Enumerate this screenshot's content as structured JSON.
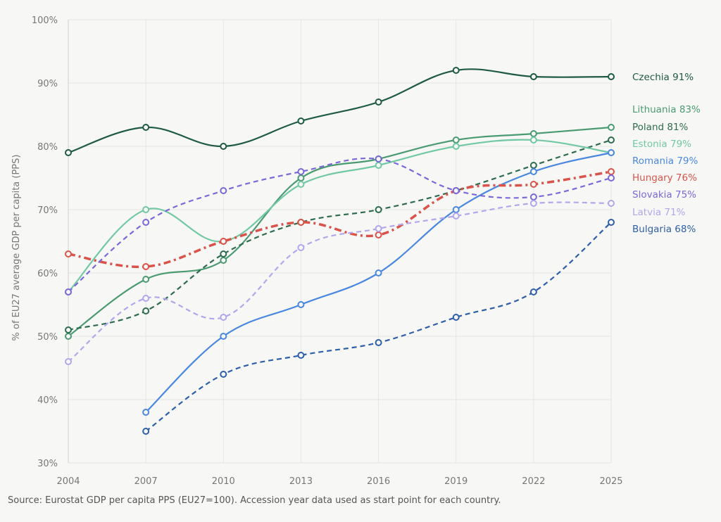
{
  "chart_data": {
    "type": "line",
    "title": "",
    "xlabel": "",
    "ylabel": "% of EU27 average GDP per capita (PPS)",
    "categories": [
      "2004",
      "2007",
      "2010",
      "2013",
      "2016",
      "2019",
      "2022",
      "2025"
    ],
    "ylim": [
      30,
      100
    ],
    "yticks": [
      "30%",
      "40%",
      "50%",
      "60%",
      "70%",
      "80%",
      "90%",
      "100%"
    ],
    "grid": true,
    "legend": "direct labels at right end",
    "series": [
      {
        "name": "Czechia",
        "label": "Czechia 91%",
        "color": "#1f5a45",
        "style": "solid",
        "values": [
          79,
          83,
          80,
          84,
          87,
          92,
          91,
          91
        ]
      },
      {
        "name": "Lithuania",
        "label": "Lithuania 83%",
        "color": "#4a9a72",
        "style": "solid",
        "values": [
          50,
          59,
          62,
          75,
          78,
          81,
          82,
          83
        ]
      },
      {
        "name": "Poland",
        "label": "Poland 81%",
        "color": "#2e6b4f",
        "style": "dashed",
        "values": [
          51,
          54,
          63,
          68,
          70,
          73,
          77,
          81
        ]
      },
      {
        "name": "Estonia",
        "label": "Estonia 79%",
        "color": "#72c8a4",
        "style": "solid",
        "values": [
          57,
          70,
          65,
          74,
          77,
          80,
          81,
          79
        ]
      },
      {
        "name": "Romania",
        "label": "Romania 79%",
        "color": "#4a88e0",
        "style": "solid",
        "values": [
          null,
          38,
          50,
          55,
          60,
          70,
          76,
          79
        ]
      },
      {
        "name": "Hungary",
        "label": "Hungary 76%",
        "color": "#d9534a",
        "style": "dashdot",
        "values": [
          63,
          61,
          65,
          68,
          66,
          73,
          74,
          76
        ]
      },
      {
        "name": "Slovakia",
        "label": "Slovakia 75%",
        "color": "#7b68d9",
        "style": "dashed",
        "values": [
          57,
          68,
          73,
          76,
          78,
          73,
          72,
          75
        ]
      },
      {
        "name": "Latvia",
        "label": "Latvia 71%",
        "color": "#b3a6ec",
        "style": "dashed",
        "values": [
          46,
          56,
          53,
          64,
          67,
          69,
          71,
          71
        ]
      },
      {
        "name": "Bulgaria",
        "label": "Bulgaria 68%",
        "color": "#2f5fa8",
        "style": "dashed",
        "values": [
          null,
          35,
          44,
          47,
          49,
          53,
          57,
          68
        ]
      }
    ]
  },
  "source": "Source: Eurostat GDP per capita PPS (EU27=100). Accession year data used as start point for each country."
}
